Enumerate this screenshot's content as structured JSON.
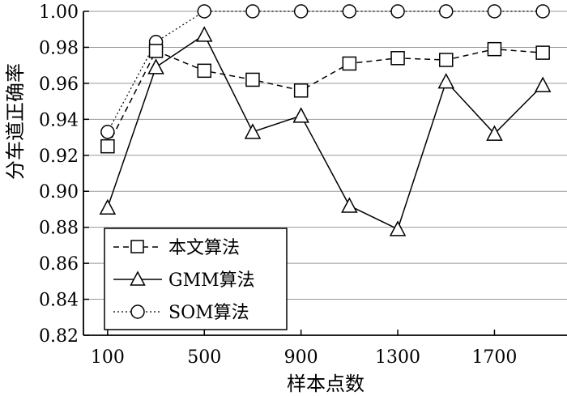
{
  "chart_data": {
    "type": "line",
    "title": "",
    "xlabel": "样本点数",
    "ylabel": "分车道正确率",
    "x": [
      100,
      300,
      500,
      700,
      900,
      1100,
      1300,
      1500,
      1700,
      1900
    ],
    "x_ticks": [
      "100",
      "500",
      "900",
      "1300",
      "1700"
    ],
    "x_tick_values": [
      100,
      500,
      900,
      1300,
      1700
    ],
    "xlim": [
      0,
      2000
    ],
    "ylim": [
      0.82,
      1.0
    ],
    "y_ticks": [
      "0.82",
      "0.84",
      "0.86",
      "0.88",
      "0.90",
      "0.92",
      "0.94",
      "0.96",
      "0.98",
      "1.00"
    ],
    "y_tick_values": [
      0.82,
      0.84,
      0.86,
      0.88,
      0.9,
      0.92,
      0.94,
      0.96,
      0.98,
      1.0
    ],
    "grid": "horizontal",
    "legend_position": "bottom-left",
    "series": [
      {
        "name": "本文算法",
        "marker": "square",
        "line_style": "dashed",
        "color": "#000000",
        "values": [
          0.925,
          0.978,
          0.967,
          0.962,
          0.956,
          0.971,
          0.974,
          0.973,
          0.979,
          0.977
        ]
      },
      {
        "name": "GMM算法",
        "marker": "triangle",
        "line_style": "solid",
        "color": "#000000",
        "values": [
          0.891,
          0.969,
          0.987,
          0.933,
          0.942,
          0.892,
          0.879,
          0.961,
          0.932,
          0.959
        ]
      },
      {
        "name": "SOM算法",
        "marker": "circle",
        "line_style": "dotted",
        "color": "#000000",
        "values": [
          0.933,
          0.983,
          1.0,
          1.0,
          1.0,
          1.0,
          1.0,
          1.0,
          1.0,
          1.0
        ]
      }
    ]
  }
}
